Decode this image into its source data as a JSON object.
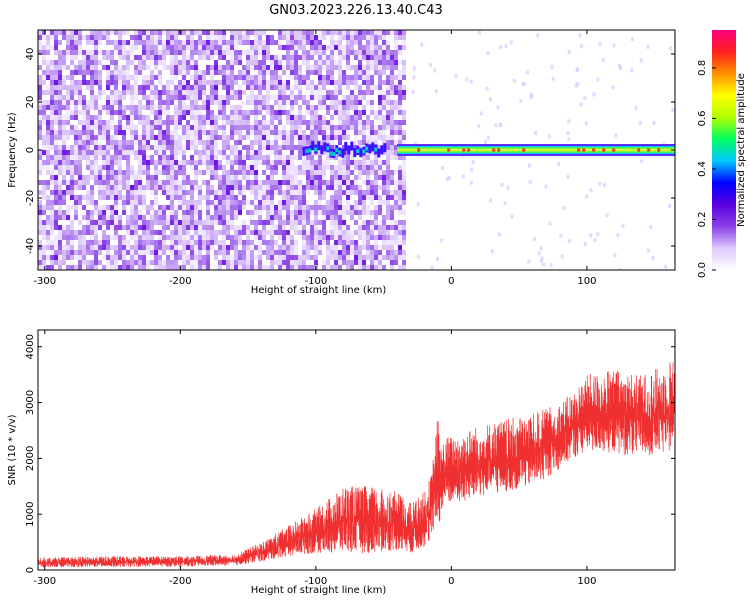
{
  "title": "GN03.2023.226.13.40.C43",
  "chart_data": [
    {
      "type": "heatmap",
      "xlabel": "Height of straight line (km)",
      "ylabel": "Frequency (Hz)",
      "xlim": [
        -305,
        165
      ],
      "ylim": [
        -50,
        50
      ],
      "xticks": [
        -300,
        -200,
        -100,
        0,
        100
      ],
      "yticks": [
        -40,
        -20,
        0,
        20,
        40
      ],
      "colorbar": {
        "label": "Normalized spectral amplitude",
        "range": [
          0.0,
          0.95
        ],
        "ticks": [
          "0.0",
          "0.2",
          "0.4",
          "0.6",
          "0.8"
        ],
        "colors": [
          "#ffffff",
          "#dcc8ff",
          "#8a40e6",
          "#5a00e0",
          "#0000ff",
          "#00c8ff",
          "#00ff60",
          "#b0ff00",
          "#ffff00",
          "#ff9000",
          "#ff2020",
          "#ff0080"
        ]
      },
      "regions": [
        {
          "name": "noise",
          "x": [
            -305,
            -35
          ],
          "level": 0.1
        },
        {
          "name": "signal_band_start",
          "x": [
            -110,
            -50
          ],
          "frequency": 0,
          "level": 0.35
        },
        {
          "name": "signal_band",
          "x": [
            -40,
            165
          ],
          "frequency": 0,
          "level": 0.85
        }
      ]
    },
    {
      "type": "line",
      "color": "#f03030",
      "xlabel": "Height of straight line (km)",
      "ylabel": "SNR (10 * v/v)",
      "xlim": [
        -305,
        165
      ],
      "ylim": [
        0,
        4300
      ],
      "xticks": [
        -300,
        -200,
        -100,
        0,
        100
      ],
      "yticks": [
        0,
        1000,
        2000,
        3000,
        4000
      ],
      "series": [
        {
          "x": [
            -305,
            -250,
            -200,
            -160,
            -140,
            -120,
            -100,
            -80,
            -60,
            -40,
            -30,
            -20,
            -15,
            -10,
            -8,
            -5,
            0,
            10,
            20,
            40,
            60,
            80,
            90,
            100,
            120,
            140,
            160,
            165
          ],
          "y_low": [
            50,
            50,
            60,
            80,
            150,
            250,
            300,
            300,
            300,
            350,
            300,
            400,
            500,
            900,
            800,
            1100,
            1200,
            1200,
            1300,
            1400,
            1500,
            1800,
            2000,
            2100,
            2100,
            2000,
            2100,
            2300
          ],
          "y_high": [
            220,
            250,
            250,
            280,
            500,
            800,
            1100,
            1500,
            1500,
            1400,
            1200,
            1400,
            1700,
            2800,
            2200,
            2400,
            2400,
            2500,
            2600,
            2700,
            2800,
            3000,
            3200,
            3500,
            3600,
            3500,
            3700,
            4000
          ]
        }
      ]
    }
  ]
}
